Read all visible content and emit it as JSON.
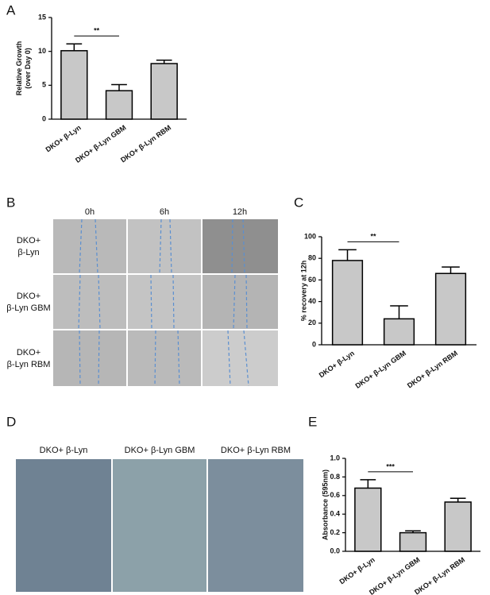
{
  "panels": [
    "A",
    "B",
    "C",
    "D",
    "E"
  ],
  "wound_assay": {
    "columns": [
      "0h",
      "6h",
      "12h"
    ],
    "rows": [
      [
        "DKO+",
        "β-Lyn"
      ],
      [
        "DKO+",
        "β-Lyn GBM"
      ],
      [
        "DKO+",
        "β-Lyn RBM"
      ]
    ]
  },
  "invasion_assay": {
    "columns": [
      "DKO+ β-Lyn",
      "DKO+ β-Lyn GBM",
      "DKO+ β-Lyn RBM"
    ]
  },
  "chart_data": [
    {
      "type": "bar",
      "ylabel": [
        "Relative Growth",
        "(over Day 0)"
      ],
      "categories": [
        "DKO+ β-Lyn",
        "DKO+ β-Lyn GBM",
        "DKO+ β-Lyn RBM"
      ],
      "values": [
        10.1,
        4.2,
        8.2
      ],
      "errors": [
        1.0,
        0.9,
        0.5
      ],
      "color": "#c8c8c8",
      "ylim": [
        0,
        15
      ],
      "yticks": [
        0,
        5,
        10,
        15
      ],
      "annotations": [
        {
          "text": "**",
          "between": [
            0,
            1
          ]
        }
      ]
    },
    {
      "type": "bar",
      "ylabel": [
        "% recovery at 12h"
      ],
      "categories": [
        "DKO+ β-Lyn",
        "DKO+ β-Lyn GBM",
        "DKO+ β-Lyn RBM"
      ],
      "values": [
        78,
        24,
        66
      ],
      "errors": [
        10,
        12,
        6
      ],
      "color": "#c8c8c8",
      "ylim": [
        0,
        100
      ],
      "yticks": [
        0,
        20,
        40,
        60,
        80,
        100
      ],
      "annotations": [
        {
          "text": "**",
          "between": [
            0,
            1
          ]
        }
      ]
    },
    {
      "type": "bar",
      "ylabel": [
        "Absorbance (595nm)"
      ],
      "categories": [
        "DKO+ β-Lyn",
        "DKO+ β-Lyn GBM",
        "DKO+ β-Lyn RBM"
      ],
      "values": [
        0.68,
        0.2,
        0.53
      ],
      "errors": [
        0.09,
        0.02,
        0.04
      ],
      "color": "#c8c8c8",
      "ylim": [
        0,
        1
      ],
      "yticks": [
        {
          "value": 0,
          "label": "0.0"
        },
        0.2,
        0.4,
        0.6,
        0.8,
        {
          "value": 1,
          "label": "1.0"
        }
      ],
      "annotations": [
        {
          "text": "***",
          "between": [
            0,
            1
          ]
        }
      ]
    }
  ]
}
